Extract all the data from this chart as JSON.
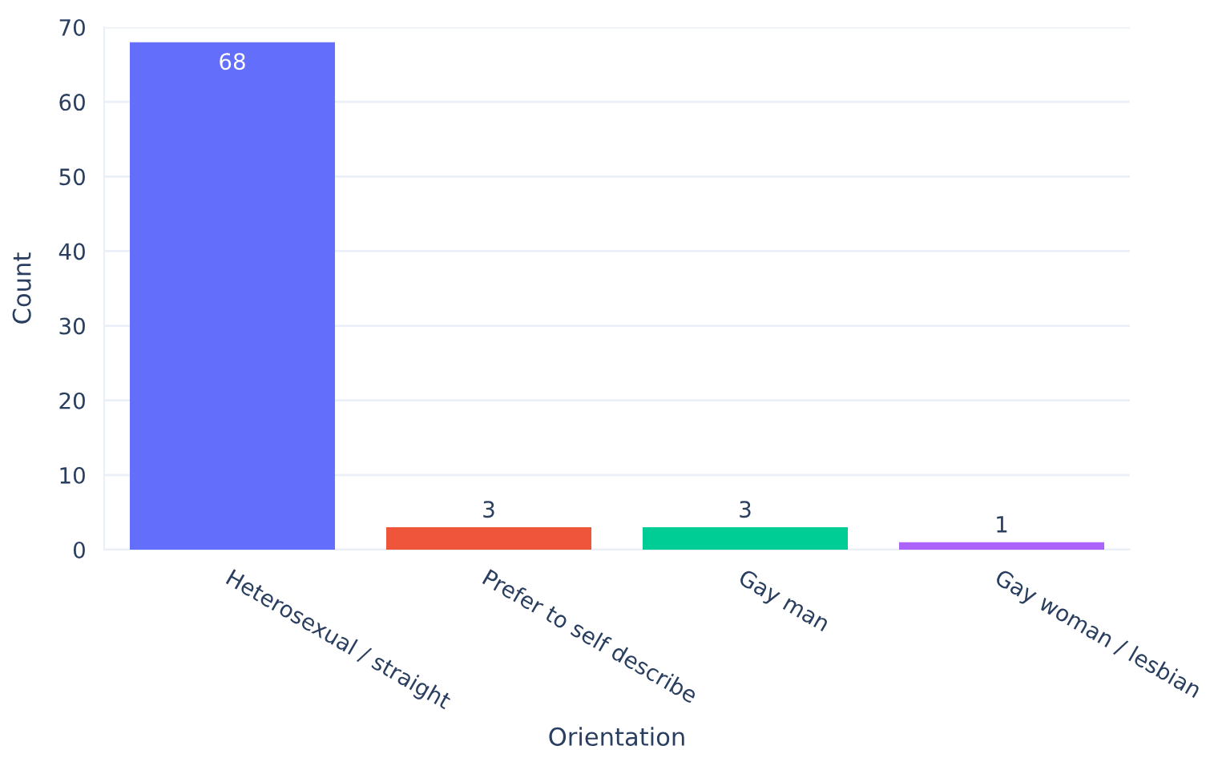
{
  "chart_data": {
    "type": "bar",
    "xlabel": "Orientation",
    "ylabel": "Count",
    "categories": [
      "Heterosexual / straight",
      "Prefer to self describe",
      "Gay man",
      "Gay woman / lesbian"
    ],
    "values": [
      68,
      3,
      3,
      1
    ],
    "colors": [
      "#636efa",
      "#ef553b",
      "#00cc96",
      "#ab63fa"
    ],
    "ylim": [
      0,
      70
    ],
    "yticks": [
      0,
      10,
      20,
      30,
      40,
      50,
      60,
      70
    ],
    "grid": "y",
    "data_labels": true
  }
}
